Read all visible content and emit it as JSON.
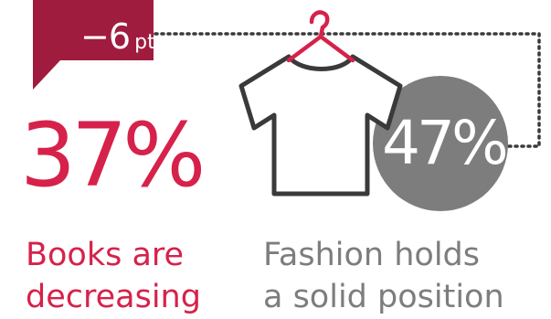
{
  "badge": {
    "value": "−6",
    "unit": "pts"
  },
  "books": {
    "percent": "37%",
    "caption_line1": "Books are",
    "caption_line2": "decreasing"
  },
  "fashion": {
    "percent": "47%",
    "caption_line1": "Fashion holds",
    "caption_line2": "a solid position"
  },
  "icons": [
    "tshirt-icon",
    "hanger-icon"
  ],
  "colors": {
    "accent": "#d6224a",
    "badge_bg": "#a01c3e",
    "circle": "#7d7d7d",
    "outline": "#3a3a3a"
  }
}
